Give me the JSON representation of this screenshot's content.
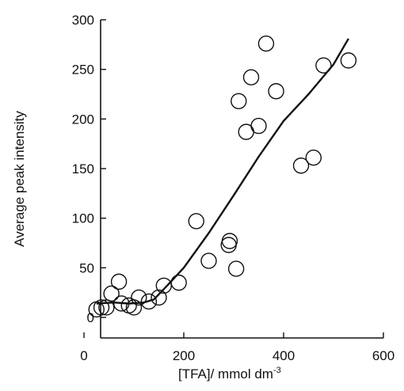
{
  "chart_data": {
    "type": "scatter",
    "xlabel": "[TFA]/ mmol dm",
    "xlabel_sup": "-3",
    "ylabel": "Average peak intensity",
    "xlim": [
      0,
      600
    ],
    "ylim": [
      -20,
      300
    ],
    "xticks": [
      0,
      200,
      400,
      600
    ],
    "yticks": [
      0,
      50,
      100,
      150,
      200,
      250,
      300
    ],
    "grid": false,
    "series": [
      {
        "type": "scatter",
        "marker": "open-circle",
        "points": [
          [
            25,
            8
          ],
          [
            35,
            10
          ],
          [
            45,
            10
          ],
          [
            55,
            24
          ],
          [
            70,
            36
          ],
          [
            75,
            14
          ],
          [
            90,
            12
          ],
          [
            100,
            10
          ],
          [
            110,
            20
          ],
          [
            130,
            16
          ],
          [
            150,
            20
          ],
          [
            160,
            32
          ],
          [
            190,
            35
          ],
          [
            225,
            97
          ],
          [
            250,
            57
          ],
          [
            290,
            73
          ],
          [
            292,
            77
          ],
          [
            305,
            49
          ],
          [
            310,
            218
          ],
          [
            325,
            187
          ],
          [
            335,
            242
          ],
          [
            350,
            193
          ],
          [
            365,
            276
          ],
          [
            385,
            228
          ],
          [
            435,
            153
          ],
          [
            460,
            161
          ],
          [
            480,
            254
          ],
          [
            530,
            259
          ]
        ]
      },
      {
        "type": "line",
        "points": [
          [
            25,
            14
          ],
          [
            60,
            15
          ],
          [
            90,
            14
          ],
          [
            120,
            15
          ],
          [
            140,
            18
          ],
          [
            165,
            31
          ],
          [
            200,
            50
          ],
          [
            250,
            85
          ],
          [
            300,
            123
          ],
          [
            350,
            162
          ],
          [
            400,
            198
          ],
          [
            450,
            225
          ],
          [
            500,
            255
          ],
          [
            530,
            281
          ]
        ]
      }
    ]
  }
}
